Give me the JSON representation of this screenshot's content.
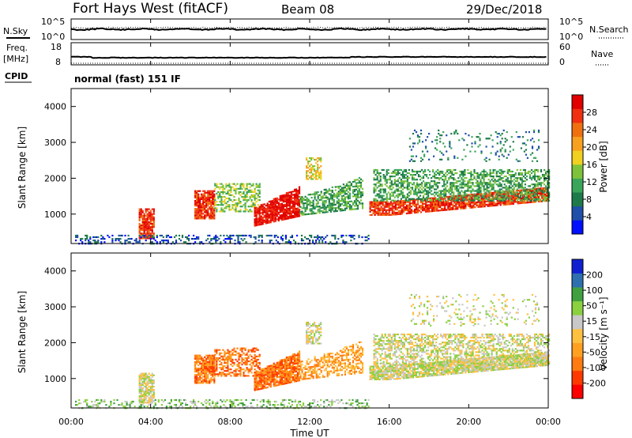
{
  "header": {
    "title": "Fort Hays West (fitACF)",
    "beam": "Beam 08",
    "date": "29/Dec/2018",
    "cpid_label": "CPID",
    "cpid_value": "normal (fast) 151 IF"
  },
  "colors": {
    "power": [
      "#0010ff",
      "#1f4fa8",
      "#1e7a4a",
      "#3aa55a",
      "#7dc23a",
      "#f0d020",
      "#f8a020",
      "#f07010",
      "#f03010",
      "#e00000"
    ],
    "velocity": [
      "#ff0000",
      "#ff3a00",
      "#ff7a10",
      "#ffa020",
      "#ffc040",
      "#c8c8c8",
      "#8ad040",
      "#40a040",
      "#2e6fb0",
      "#1020d0"
    ],
    "low_power_scatter": "#2040b0",
    "ground_scatter": "#4a8a4a"
  },
  "chart_data": [
    {
      "type": "line",
      "name_label": "N.Sky",
      "right_label": "N.Search",
      "left_ticks": [
        "10^5",
        "10^0"
      ],
      "right_ticks": [
        "10^5",
        "10^0"
      ],
      "x": [
        "00:00",
        "04:00",
        "08:00",
        "12:00",
        "16:00",
        "20:00",
        "00:00"
      ],
      "xlim": [
        0,
        24
      ]
    },
    {
      "type": "line",
      "name_label": "Freq.",
      "unit_label": "[MHz]",
      "right_label": "Nave",
      "left_ticks": [
        "18",
        "8"
      ],
      "right_ticks": [
        "60",
        "0"
      ],
      "xlim": [
        0,
        24
      ]
    },
    {
      "type": "heatmap",
      "ylabel": "Slant Range [km]",
      "colorbar_label": "Power [dB]",
      "colorbar_ticks": [
        "28",
        "24",
        "20",
        "16",
        "12",
        "8",
        "4"
      ],
      "yticks": [
        "4000",
        "3000",
        "2000",
        "1000"
      ],
      "ylim": [
        180,
        4500
      ],
      "xlim": [
        0,
        24
      ]
    },
    {
      "type": "heatmap",
      "ylabel": "Slant Range [km]",
      "colorbar_label": "Velocity [m s⁻¹]",
      "colorbar_ticks": [
        "200",
        "100",
        "50",
        "15",
        "-15",
        "-50",
        "-100",
        "-200"
      ],
      "yticks": [
        "4000",
        "3000",
        "2000",
        "1000"
      ],
      "ylim": [
        180,
        4500
      ],
      "xlim": [
        0,
        24
      ],
      "xticks": [
        "00:00",
        "04:00",
        "08:00",
        "12:00",
        "16:00",
        "20:00",
        "00:00"
      ],
      "xlabel": "Time UT"
    }
  ]
}
